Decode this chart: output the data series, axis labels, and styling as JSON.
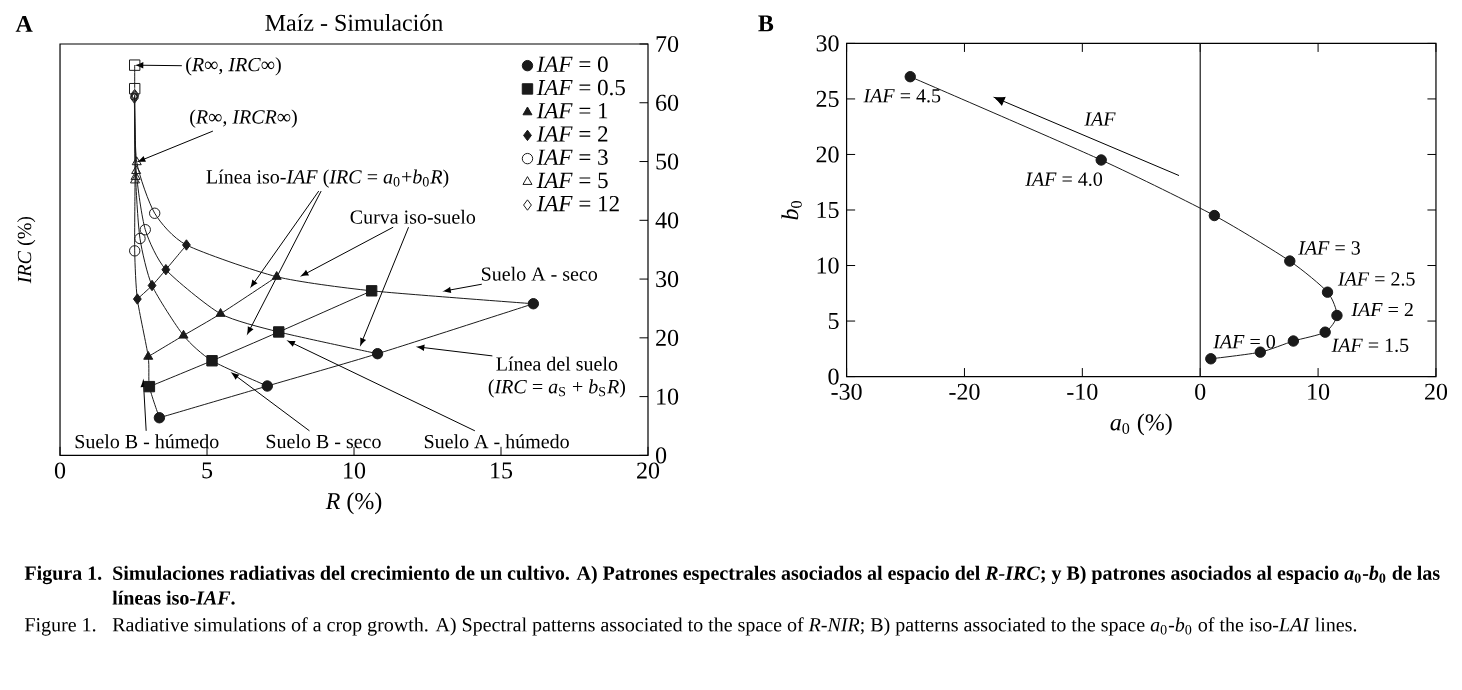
{
  "chart_data": [
    {
      "type": "line",
      "title": "Maíz - Simulación",
      "xlabel": "*R* (%)",
      "ylabel": "*IRC* (%)",
      "xlim": [
        0,
        20
      ],
      "ylim": [
        0,
        70
      ],
      "xticks": [
        0,
        5,
        10,
        15,
        20
      ],
      "yticks": [
        0,
        10,
        20,
        30,
        40,
        50,
        60,
        70
      ],
      "legend": "top right",
      "series": [
        {
          "name": "*IAF* = 0",
          "color": "#1a1a1a",
          "marker": "circle",
          "x": [
            16.1,
            10.8,
            7.05,
            3.38
          ],
          "values": [
            25.8,
            17.3,
            11.8,
            6.4
          ]
        },
        {
          "name": "*IAF* = 0.5",
          "color": "#1a1a1a",
          "marker": "square",
          "x": [
            10.6,
            7.44,
            5.17,
            3.04
          ],
          "values": [
            28.0,
            21.0,
            16.1,
            11.7
          ]
        },
        {
          "name": "*IAF* = 1",
          "color": "#1a1a1a",
          "marker": "triangle",
          "x": [
            7.37,
            5.46,
            4.2,
            3.0
          ],
          "values": [
            30.4,
            24.1,
            20.4,
            16.8
          ]
        },
        {
          "name": "*IAF* = 2",
          "color": "#1a1a1a",
          "marker": "diamond",
          "x": [
            4.3,
            3.6,
            3.13,
            2.63
          ],
          "values": [
            35.8,
            31.6,
            28.9,
            26.6
          ]
        },
        {
          "name": "*IAF* = 3",
          "type": "scatter",
          "color": "#1a1a1a",
          "marker": "circle-open",
          "x": [
            3.22,
            2.9,
            2.72,
            2.54
          ],
          "values": [
            41.2,
            38.4,
            36.9,
            34.8
          ]
        },
        {
          "name": "*IAF* = 5",
          "type": "scatter",
          "color": "#1a1a1a",
          "marker": "triangle-open",
          "x": [
            2.61,
            2.59,
            2.57,
            2.55
          ],
          "values": [
            49.9,
            48.4,
            47.4,
            46.8
          ]
        },
        {
          "name": "*IAF* = 12",
          "type": "scatter",
          "color": "#1a1a1a",
          "marker": "diamond-open",
          "x": [
            2.54,
            2.54,
            2.53,
            2.53
          ],
          "values": [
            61.4,
            61.2,
            61.0,
            60.8
          ]
        },
        {
          "color": "#1a1a1a",
          "marker": "square-open",
          "x": [
            2.54,
            2.54
          ],
          "values": [
            66.4,
            62.4
          ]
        },
        {
          "color": "#1a1a1a",
          "marker": "none",
          "x": [
            16.1,
            10.6,
            7.37,
            4.3,
            3.22,
            2.61,
            2.54
          ],
          "values": [
            25.8,
            28.0,
            30.4,
            35.8,
            41.2,
            49.9,
            61.4
          ]
        },
        {
          "color": "#1a1a1a",
          "marker": "none",
          "x": [
            10.8,
            7.44,
            5.46,
            3.6,
            2.9,
            2.59,
            2.54
          ],
          "values": [
            17.3,
            21.0,
            24.1,
            31.6,
            38.4,
            48.4,
            61.2
          ]
        },
        {
          "color": "#1a1a1a",
          "marker": "none",
          "x": [
            7.05,
            5.17,
            4.2,
            3.13,
            2.72,
            2.57,
            2.53
          ],
          "values": [
            11.8,
            16.1,
            20.4,
            28.9,
            36.9,
            47.4,
            61.0
          ]
        },
        {
          "color": "#1a1a1a",
          "marker": "none",
          "x": [
            3.38,
            3.04,
            3.0,
            2.63,
            2.54,
            2.55,
            2.53
          ],
          "values": [
            6.4,
            11.7,
            16.8,
            26.6,
            34.8,
            46.8,
            60.8
          ]
        }
      ],
      "annotations": [
        "A",
        {
          "text": "(*R*∞, *IRC*∞)",
          "x": 2.54,
          "y": 66.4
        },
        {
          "text": "(*R*∞, *IRCR*∞)",
          "x": 2.61,
          "y": 49.9
        },
        "Línea iso-*IAF* (*IRC* = *a*$_{0}$+*b*$_{0}$*R*)",
        {
          "text": "Curva iso-suelo",
          "x": 10.2,
          "y": 18.5
        },
        {
          "text": "Suelo A - seco",
          "x": 13.0,
          "y": 27.9
        },
        {
          "text": "Línea del suelo",
          "x": 12.1,
          "y": 18.5
        },
        "(*IRC* = *a*$_{S}$ + *b*$_{S}$*R*)",
        {
          "text": "Suelo B - húmedo",
          "x": 2.83,
          "y": 13.1
        },
        {
          "text": "Suelo B - seco",
          "x": 5.8,
          "y": 14.2
        },
        {
          "text": "Suelo A - húmedo",
          "x": 7.7,
          "y": 19.6
        }
      ]
    },
    {
      "type": "line",
      "xlabel": "*a*$_{0}$ (%)",
      "ylabel": "*b*$_{0}$",
      "xlim": [
        -30,
        20
      ],
      "ylim": [
        0,
        30
      ],
      "xticks": [
        -30,
        -20,
        -10,
        0,
        10,
        20
      ],
      "yticks": [
        0,
        5,
        10,
        15,
        20,
        25,
        30
      ],
      "ref_lines": [
        {
          "axis": "x",
          "value": 0,
          "color": "#1a1a1a"
        }
      ],
      "series": [
        {
          "color": "#1a1a1a",
          "marker": "circle",
          "x": [
            0.9,
            5.1,
            7.9,
            10.6,
            11.6,
            10.8,
            7.6,
            1.2,
            -8.4,
            -24.6
          ],
          "values": [
            1.6,
            2.2,
            3.2,
            4.0,
            5.5,
            7.6,
            10.4,
            14.5,
            19.5,
            27.0
          ]
        }
      ],
      "annotations": [
        "B",
        {
          "text": "*IAF* = 4.5",
          "x": -24.6,
          "y": 27.0
        },
        {
          "text": "*IAF* = 4.0",
          "x": -8.4,
          "y": 19.5
        },
        {
          "text": "*IAF* = 3",
          "x": 7.6,
          "y": 10.4
        },
        {
          "text": "*IAF* = 2.5",
          "x": 10.8,
          "y": 7.6
        },
        {
          "text": "*IAF* = 2",
          "x": 11.6,
          "y": 5.5
        },
        {
          "text": "*IAF* = 1.5",
          "x": 10.6,
          "y": 4.0
        },
        {
          "text": "*IAF* = 0",
          "x": 0.9,
          "y": 1.6
        },
        "*IAF*",
        "Figura 1.",
        "Simulaciones radiativas del crecimiento de un cultivo. A) Patrones espectrales asociados al espacio del *R-IRC*; y B) patrones asociados al espacio *a*$_{0}$-*b*$_{0}$ de las líneas iso-*IAF*.",
        "Figure 1.",
        "Radiative simulations of a crop growth. A) Spectral patterns associated to the space of *R-NIR*; B) patterns associated to the space *a*$_{0}$-*b*$_{0}$ of the iso-*LAI* lines."
      ]
    }
  ]
}
